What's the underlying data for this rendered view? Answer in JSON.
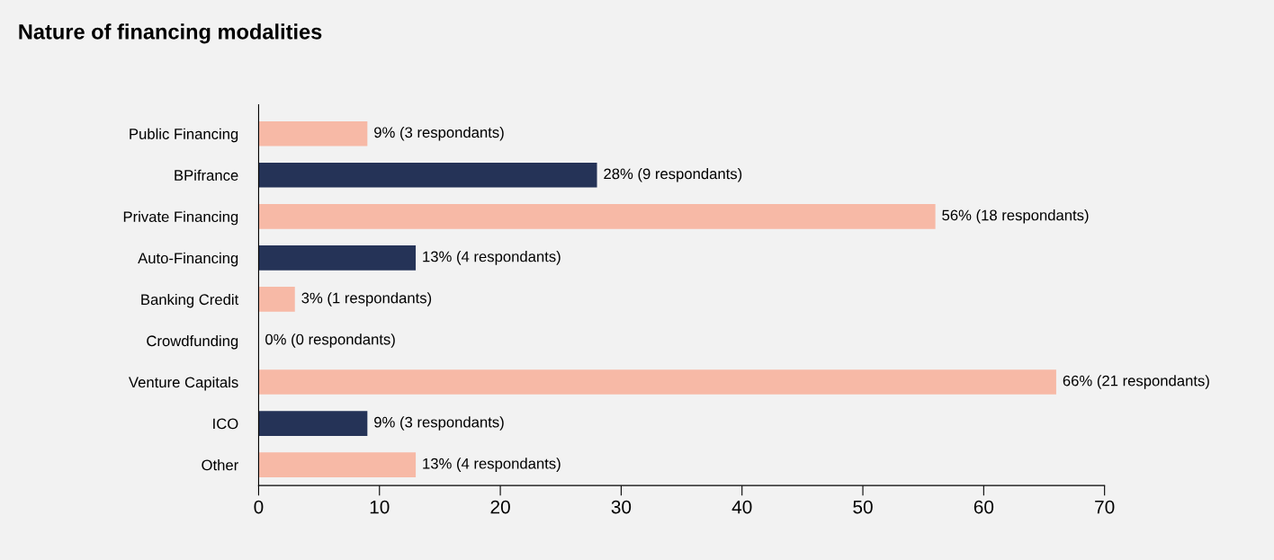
{
  "chart_data": {
    "type": "bar",
    "orientation": "horizontal",
    "title": "Nature of financing modalities",
    "categories": [
      "Public Financing",
      "BPifrance",
      "Private Financing",
      "Auto-Financing",
      "Banking Credit",
      "Crowdfunding",
      "Venture Capitals",
      "ICO",
      "Other"
    ],
    "values": [
      9,
      28,
      56,
      13,
      3,
      0,
      66,
      9,
      13
    ],
    "colors": [
      "#f7b9a6",
      "#253357",
      "#f7b9a6",
      "#253357",
      "#f7b9a6",
      "#253357",
      "#f7b9a6",
      "#253357",
      "#f7b9a6"
    ],
    "value_labels": [
      "9% (3 respondants)",
      "28% (9 respondants)",
      "56% (18 respondants)",
      "13% (4 respondants)",
      "3% (1 respondants)",
      "0% (0 respondants)",
      "66% (21 respondants)",
      "9% (3 respondants)",
      "13% (4 respondants)"
    ],
    "xlim": [
      0,
      70
    ],
    "xticks": [
      0,
      10,
      20,
      30,
      40,
      50,
      60,
      70
    ],
    "grid": false,
    "legend": false
  }
}
